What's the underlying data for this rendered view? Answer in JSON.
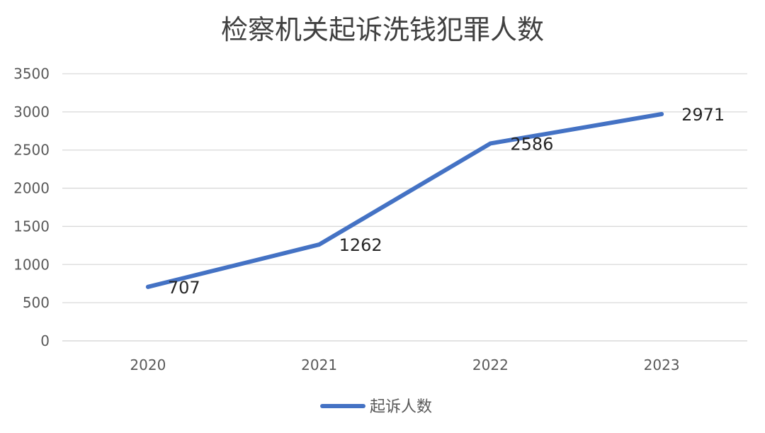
{
  "chart_data": {
    "type": "line",
    "title": "检察机关起诉洗钱犯罪人数",
    "categories": [
      "2020",
      "2021",
      "2022",
      "2023"
    ],
    "series": [
      {
        "name": "起诉人数",
        "values": [
          707,
          1262,
          2586,
          2971
        ],
        "color": "#4472C4"
      }
    ],
    "data_labels": [
      "707",
      "1262",
      "2586",
      "2971"
    ],
    "y_ticks": [
      "0",
      "500",
      "1000",
      "1500",
      "2000",
      "2500",
      "3000",
      "3500"
    ],
    "ylim": [
      0,
      3500
    ],
    "grid": true,
    "legend_position": "bottom",
    "xlabel": "",
    "ylabel": ""
  }
}
